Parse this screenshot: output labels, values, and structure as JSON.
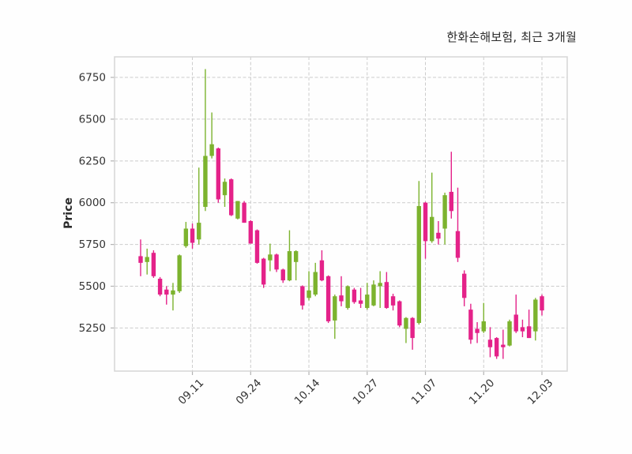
{
  "header": {
    "title": "한화손해보험, 최근 3개월"
  },
  "chart_data": {
    "type": "candlestick",
    "title": "한화손해보험, 최근 3개월",
    "ylabel": "Price",
    "xlabel": "",
    "grid": true,
    "legend_position": "none",
    "ylim": [
      4992,
      6873
    ],
    "yticks": [
      5250,
      5500,
      5750,
      6000,
      6250,
      6500,
      6750
    ],
    "xticks": [
      {
        "index": 8,
        "label": "09.11"
      },
      {
        "index": 17,
        "label": "09.24"
      },
      {
        "index": 26,
        "label": "10.14"
      },
      {
        "index": 35,
        "label": "10.27"
      },
      {
        "index": 44,
        "label": "11.07"
      },
      {
        "index": 53,
        "label": "11.20"
      },
      {
        "index": 62,
        "label": "12.03"
      }
    ],
    "style": {
      "up_color": "#7CB32E",
      "down_color": "#E42289",
      "grid_color": "#cccccc",
      "border_color": "#d5d5d5",
      "tick_color": "#b3b3b3",
      "text_color": "#333333",
      "background": "#fefefe"
    },
    "candle_format": [
      "open",
      "high",
      "low",
      "close"
    ],
    "candles": [
      [
        5680,
        5780,
        5560,
        5640
      ],
      [
        5645,
        5725,
        5570,
        5675
      ],
      [
        5700,
        5715,
        5550,
        5560
      ],
      [
        5545,
        5555,
        5440,
        5450
      ],
      [
        5480,
        5500,
        5390,
        5450
      ],
      [
        5450,
        5520,
        5355,
        5475
      ],
      [
        5470,
        5690,
        5460,
        5685
      ],
      [
        5740,
        5885,
        5730,
        5845
      ],
      [
        5845,
        5875,
        5725,
        5760
      ],
      [
        5780,
        6210,
        5750,
        5880
      ],
      [
        5975,
        6800,
        5950,
        6280
      ],
      [
        6280,
        6540,
        6265,
        6350
      ],
      [
        6325,
        6330,
        6000,
        6020
      ],
      [
        6045,
        6145,
        5975,
        6125
      ],
      [
        6140,
        6145,
        5920,
        5925
      ],
      [
        5905,
        6010,
        5900,
        6010
      ],
      [
        6000,
        6010,
        5880,
        5880
      ],
      [
        5890,
        5895,
        5755,
        5755
      ],
      [
        5835,
        5840,
        5635,
        5640
      ],
      [
        5665,
        5670,
        5490,
        5510
      ],
      [
        5655,
        5755,
        5590,
        5690
      ],
      [
        5690,
        5695,
        5585,
        5600
      ],
      [
        5600,
        5605,
        5520,
        5535
      ],
      [
        5535,
        5835,
        5530,
        5710
      ],
      [
        5645,
        5715,
        5535,
        5710
      ],
      [
        5500,
        5505,
        5360,
        5385
      ],
      [
        5430,
        5590,
        5415,
        5475
      ],
      [
        5450,
        5640,
        5440,
        5585
      ],
      [
        5655,
        5715,
        5530,
        5535
      ],
      [
        5560,
        5565,
        5280,
        5290
      ],
      [
        5295,
        5450,
        5185,
        5440
      ],
      [
        5445,
        5560,
        5380,
        5410
      ],
      [
        5370,
        5505,
        5360,
        5500
      ],
      [
        5480,
        5490,
        5395,
        5405
      ],
      [
        5415,
        5490,
        5370,
        5395
      ],
      [
        5370,
        5520,
        5360,
        5450
      ],
      [
        5385,
        5535,
        5380,
        5510
      ],
      [
        5500,
        5590,
        5370,
        5520
      ],
      [
        5525,
        5585,
        5365,
        5370
      ],
      [
        5440,
        5455,
        5355,
        5385
      ],
      [
        5410,
        5415,
        5255,
        5265
      ],
      [
        5245,
        5315,
        5160,
        5310
      ],
      [
        5310,
        5315,
        5120,
        5190
      ],
      [
        5280,
        6130,
        5270,
        5980
      ],
      [
        6000,
        6005,
        5665,
        5770
      ],
      [
        5770,
        6180,
        5760,
        5915
      ],
      [
        5820,
        5890,
        5750,
        5785
      ],
      [
        5845,
        6060,
        5750,
        6045
      ],
      [
        6065,
        6305,
        5905,
        5950
      ],
      [
        5830,
        6090,
        5645,
        5670
      ],
      [
        5575,
        5595,
        5380,
        5430
      ],
      [
        5360,
        5395,
        5155,
        5180
      ],
      [
        5245,
        5285,
        5160,
        5220
      ],
      [
        5230,
        5400,
        5220,
        5290
      ],
      [
        5180,
        5255,
        5075,
        5135
      ],
      [
        5190,
        5195,
        5065,
        5080
      ],
      [
        5150,
        5240,
        5065,
        5135
      ],
      [
        5145,
        5300,
        5140,
        5290
      ],
      [
        5330,
        5450,
        5220,
        5230
      ],
      [
        5255,
        5300,
        5195,
        5230
      ],
      [
        5260,
        5360,
        5190,
        5190
      ],
      [
        5230,
        5430,
        5175,
        5420
      ],
      [
        5440,
        5450,
        5325,
        5355
      ]
    ]
  }
}
